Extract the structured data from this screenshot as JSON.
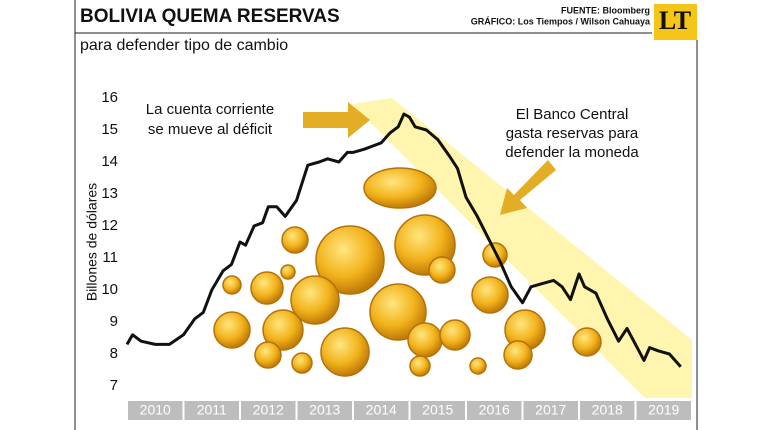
{
  "chart_data": {
    "type": "line",
    "title": "BOLIVIA QUEMA RESERVAS",
    "subtitle": "para defender tipo de cambio",
    "source": [
      "FUENTE: Bloomberg",
      "GRÁFICO: Los Tiempos / Wilson Cahuaya"
    ],
    "logo": "LT",
    "y_label": "Billones de dólares",
    "annotations": [
      {
        "lines": [
          "La cuenta corriente",
          "se mueve al déficit"
        ]
      },
      {
        "lines": [
          "El Banco Central",
          "gasta reservas para",
          "defender la moneda"
        ]
      }
    ],
    "color": "#111111",
    "x": [
      2010.0,
      2010.1,
      2010.25,
      2010.5,
      2010.75,
      2011.0,
      2011.2,
      2011.35,
      2011.5,
      2011.7,
      2011.85,
      2012.0,
      2012.1,
      2012.25,
      2012.4,
      2012.5,
      2012.65,
      2012.8,
      2013.0,
      2013.2,
      2013.4,
      2013.55,
      2013.75,
      2013.9,
      2014.0,
      2014.2,
      2014.35,
      2014.5,
      2014.65,
      2014.8,
      2014.9,
      2015.0,
      2015.1,
      2015.3,
      2015.5,
      2015.7,
      2015.85,
      2016.0,
      2016.2,
      2016.4,
      2016.6,
      2016.8,
      2017.0,
      2017.15,
      2017.35,
      2017.55,
      2017.7,
      2017.85,
      2018.0,
      2018.1,
      2018.3,
      2018.5,
      2018.7,
      2018.85,
      2019.0,
      2019.15,
      2019.25,
      2019.4,
      2019.6,
      2019.8
    ],
    "values": [
      8.3,
      8.6,
      8.4,
      8.3,
      8.3,
      8.6,
      9.1,
      9.3,
      10.0,
      10.6,
      10.8,
      11.5,
      11.4,
      12.0,
      12.1,
      12.6,
      12.6,
      12.3,
      12.8,
      13.9,
      14.0,
      14.1,
      14.0,
      14.3,
      14.3,
      14.4,
      14.5,
      14.6,
      14.9,
      15.1,
      15.5,
      15.4,
      15.1,
      15.0,
      14.7,
      14.2,
      13.8,
      12.9,
      12.3,
      11.6,
      10.9,
      10.1,
      9.6,
      10.1,
      10.2,
      10.3,
      10.1,
      9.7,
      10.5,
      10.1,
      9.9,
      9.1,
      8.4,
      8.8,
      8.3,
      7.8,
      8.2,
      8.1,
      8.0,
      7.6
    ],
    "xlim": [
      2010,
      2020
    ],
    "xticks": [
      2010,
      2011,
      2012,
      2013,
      2014,
      2015,
      2016,
      2017,
      2018,
      2019
    ],
    "ylim": [
      7,
      16
    ],
    "yticks": [
      7,
      8,
      9,
      10,
      11,
      12,
      13,
      14,
      15,
      16
    ]
  }
}
